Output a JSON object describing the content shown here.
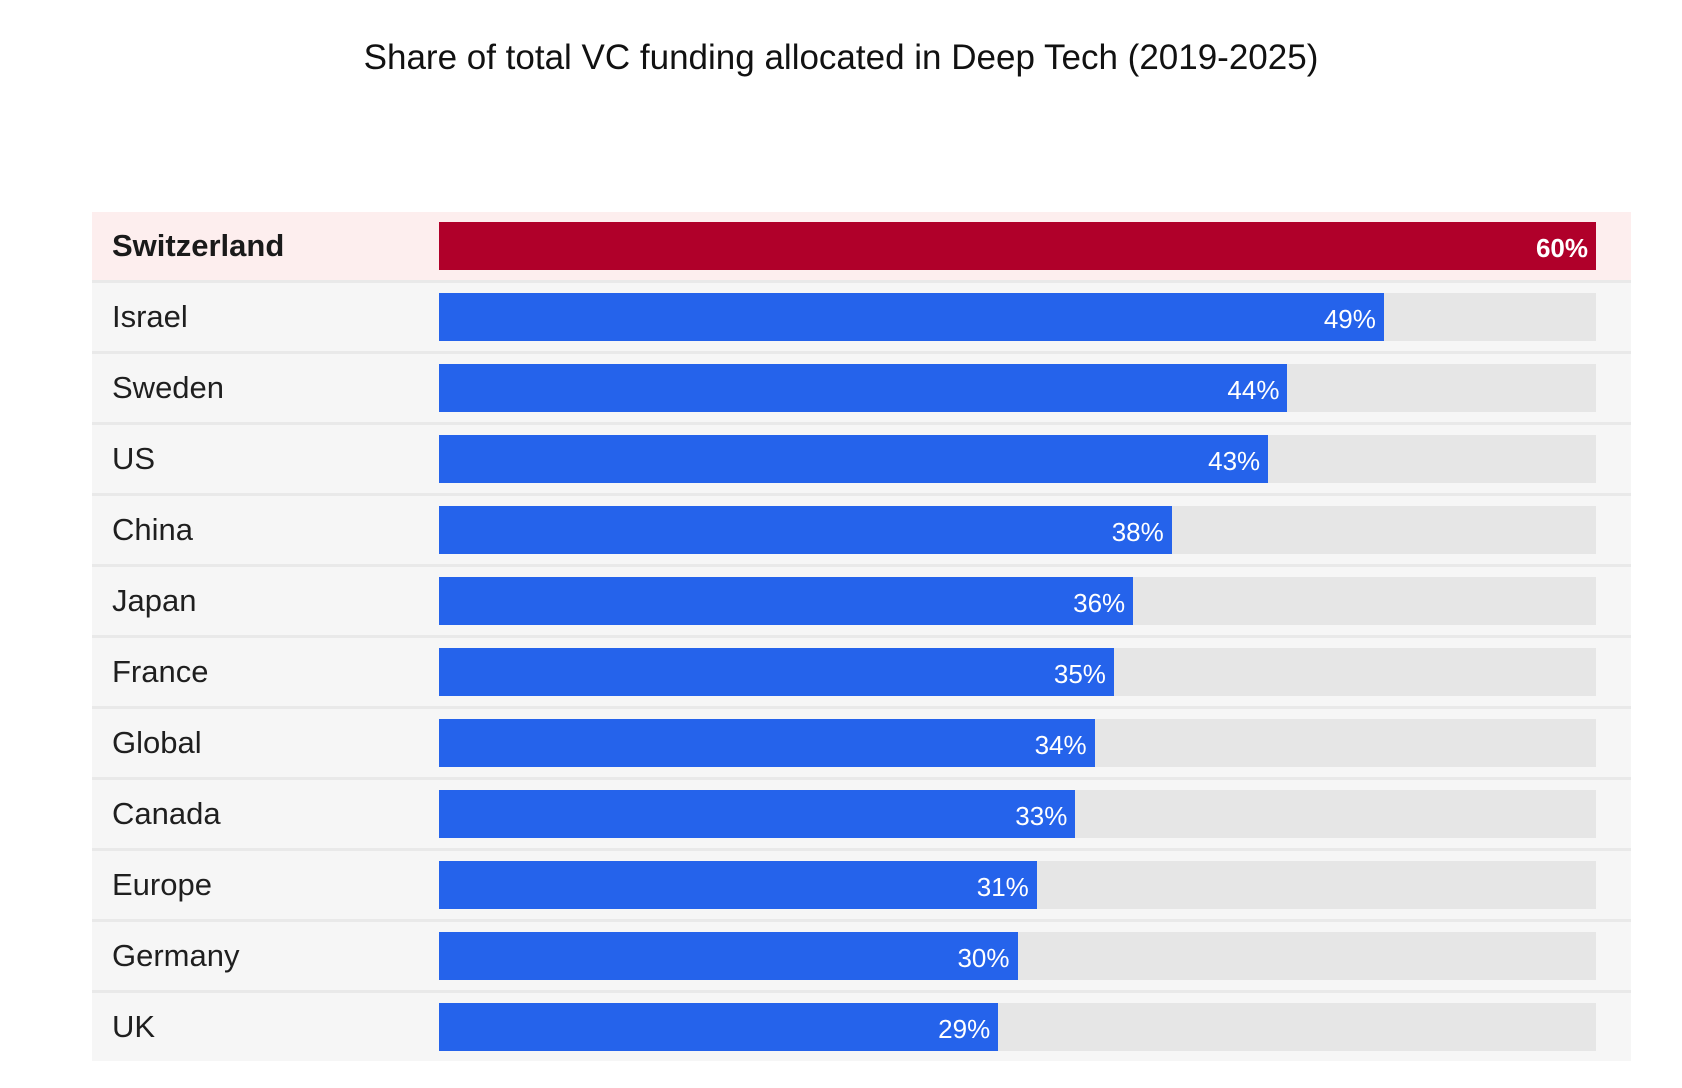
{
  "chart_data": {
    "type": "bar",
    "orientation": "horizontal",
    "title": "Share of total VC funding allocated in Deep Tech (2019-2025)",
    "xlabel": "",
    "ylabel": "",
    "xlim": [
      0,
      60
    ],
    "unit": "%",
    "highlight_color": "#b0002a",
    "bar_color": "#2563eb",
    "track_color": "#e6e6e6",
    "rows": [
      {
        "category": "Switzerland",
        "value": 60,
        "label": "60%",
        "highlight": true
      },
      {
        "category": "Israel",
        "value": 49,
        "label": "49%",
        "highlight": false
      },
      {
        "category": "Sweden",
        "value": 44,
        "label": "44%",
        "highlight": false
      },
      {
        "category": "US",
        "value": 43,
        "label": "43%",
        "highlight": false
      },
      {
        "category": "China",
        "value": 38,
        "label": "38%",
        "highlight": false
      },
      {
        "category": "Japan",
        "value": 36,
        "label": "36%",
        "highlight": false
      },
      {
        "category": "France",
        "value": 35,
        "label": "35%",
        "highlight": false
      },
      {
        "category": "Global",
        "value": 34,
        "label": "34%",
        "highlight": false
      },
      {
        "category": "Canada",
        "value": 33,
        "label": "33%",
        "highlight": false
      },
      {
        "category": "Europe",
        "value": 31,
        "label": "31%",
        "highlight": false
      },
      {
        "category": "Germany",
        "value": 30,
        "label": "30%",
        "highlight": false
      },
      {
        "category": "UK",
        "value": 29,
        "label": "29%",
        "highlight": false
      }
    ]
  }
}
